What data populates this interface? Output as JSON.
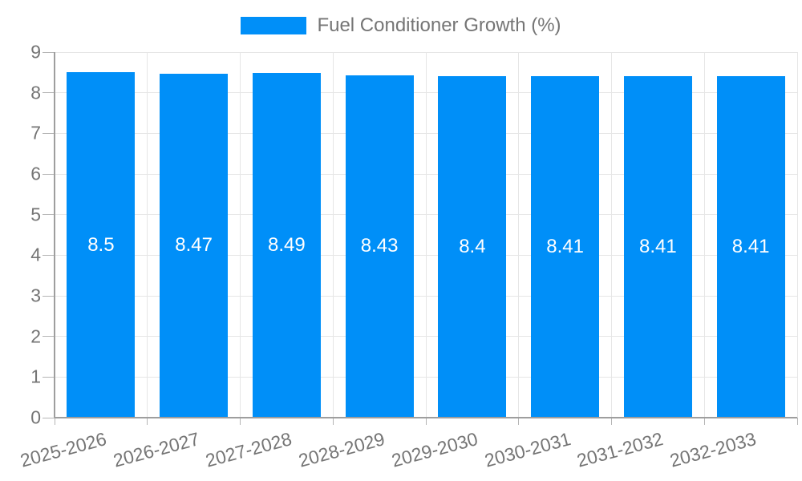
{
  "legend": {
    "label": "Fuel Conditioner Growth (%)",
    "swatch_color": "#008ff8"
  },
  "chart_data": {
    "type": "bar",
    "title": "Fuel Conditioner Growth (%)",
    "categories": [
      "2025-2026",
      "2026-2027",
      "2027-2028",
      "2028-2029",
      "2029-2030",
      "2030-2031",
      "2031-2032",
      "2032-2033"
    ],
    "series": [
      {
        "name": "Fuel Conditioner Growth (%)",
        "values": [
          8.5,
          8.47,
          8.49,
          8.43,
          8.4,
          8.41,
          8.41,
          8.41
        ],
        "value_labels": [
          "8.5",
          "8.47",
          "8.49",
          "8.43",
          "8.4",
          "8.41",
          "8.41",
          "8.41"
        ]
      }
    ],
    "xlabel": "",
    "ylabel": "",
    "ylim": [
      0,
      9
    ],
    "ytick_step": 1,
    "ytick_labels": [
      "0",
      "1",
      "2",
      "3",
      "4",
      "5",
      "6",
      "7",
      "8",
      "9"
    ],
    "grid": true,
    "value_labels_position": "center",
    "legend_position": "top-center",
    "xtick_rotation_deg": -15,
    "colors": {
      "bar": "#008ff8",
      "grid": "#e6e6e6",
      "axis": "#9e9e9e",
      "tick": "#b5b5b5",
      "tick_label": "#757575",
      "legend_text": "#757575",
      "value_label": "#ffffff",
      "background": "#ffffff"
    }
  }
}
